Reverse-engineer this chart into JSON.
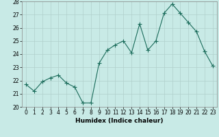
{
  "x": [
    0,
    1,
    2,
    3,
    4,
    5,
    6,
    7,
    8,
    9,
    10,
    11,
    12,
    13,
    14,
    15,
    16,
    17,
    18,
    19,
    20,
    21,
    22,
    23
  ],
  "y": [
    21.7,
    21.2,
    21.9,
    22.2,
    22.4,
    21.8,
    21.5,
    20.3,
    20.3,
    23.3,
    24.3,
    24.7,
    25.0,
    24.1,
    26.3,
    24.3,
    25.0,
    27.1,
    27.8,
    27.1,
    26.4,
    25.7,
    24.2,
    23.1
  ],
  "line_color": "#1a6b5a",
  "marker": "+",
  "marker_size": 4,
  "bg_color": "#c8eae6",
  "grid_color": "#b0d0cc",
  "xlabel": "Humidex (Indice chaleur)",
  "ylabel": "",
  "ylim": [
    20,
    28
  ],
  "xlim": [
    -0.5,
    23.5
  ],
  "yticks": [
    20,
    21,
    22,
    23,
    24,
    25,
    26,
    27,
    28
  ],
  "xticks": [
    0,
    1,
    2,
    3,
    4,
    5,
    6,
    7,
    8,
    9,
    10,
    11,
    12,
    13,
    14,
    15,
    16,
    17,
    18,
    19,
    20,
    21,
    22,
    23
  ],
  "xlabel_fontsize": 6.5,
  "tick_fontsize": 5.5,
  "linewidth": 0.8,
  "marker_linewidth": 0.8
}
